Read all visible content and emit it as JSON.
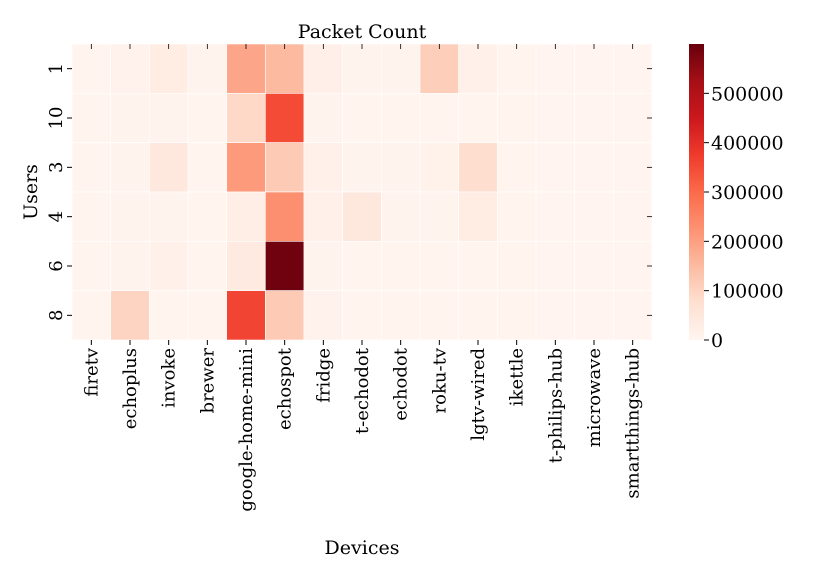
{
  "chart_data": {
    "type": "heatmap",
    "title": "Packet Count",
    "xlabel": "Devices",
    "ylabel": "Users",
    "x_categories": [
      "firetv",
      "echoplus",
      "invoke",
      "brewer",
      "google-home-mini",
      "echospot",
      "fridge",
      "t-echodot",
      "echodot",
      "roku-tv",
      "lgtv-wired",
      "ikettle",
      "t-philips-hub",
      "microwave",
      "smartthings-hub"
    ],
    "y_categories": [
      "1",
      "10",
      "3",
      "4",
      "6",
      "8"
    ],
    "values": [
      [
        5000,
        10000,
        30000,
        8000,
        190000,
        150000,
        20000,
        6000,
        8000,
        110000,
        15000,
        5000,
        3000,
        3000,
        3000
      ],
      [
        5000,
        6000,
        8000,
        4000,
        90000,
        350000,
        6000,
        5000,
        5000,
        5000,
        5000,
        4000,
        3000,
        3000,
        3000
      ],
      [
        5000,
        8000,
        50000,
        5000,
        210000,
        120000,
        15000,
        8000,
        7000,
        12000,
        80000,
        5000,
        3000,
        3000,
        3000
      ],
      [
        4000,
        6000,
        8000,
        4000,
        25000,
        230000,
        18000,
        45000,
        6000,
        6000,
        30000,
        5000,
        3000,
        3000,
        3000
      ],
      [
        5000,
        8000,
        15000,
        4000,
        40000,
        590000,
        6000,
        5000,
        5000,
        5000,
        5000,
        4000,
        3000,
        3000,
        3000
      ],
      [
        4000,
        100000,
        5000,
        4000,
        360000,
        120000,
        10000,
        5000,
        5000,
        5000,
        5000,
        4000,
        3000,
        3000,
        3000
      ]
    ],
    "colorbar": {
      "min": 0,
      "max": 600000,
      "ticks": [
        0,
        100000,
        200000,
        300000,
        400000,
        500000
      ],
      "tick_labels": [
        "0",
        "100000",
        "200000",
        "300000",
        "400000",
        "500000"
      ],
      "colormap": "Reds",
      "stops": [
        "#fff5f0",
        "#fee0d2",
        "#fcbba1",
        "#fc9272",
        "#fb6a4a",
        "#ef3b2c",
        "#cb181d",
        "#a50f15",
        "#67000d"
      ]
    }
  }
}
